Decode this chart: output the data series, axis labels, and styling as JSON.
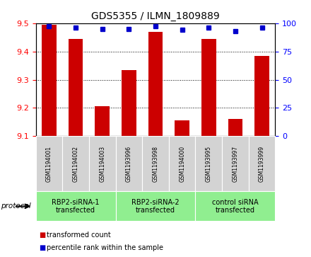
{
  "title": "GDS5355 / ILMN_1809889",
  "samples": [
    "GSM1194001",
    "GSM1194002",
    "GSM1194003",
    "GSM1193996",
    "GSM1193998",
    "GSM1194000",
    "GSM1193995",
    "GSM1193997",
    "GSM1193999"
  ],
  "bar_values": [
    9.495,
    9.445,
    9.205,
    9.335,
    9.47,
    9.155,
    9.445,
    9.16,
    9.385
  ],
  "percentile_values": [
    97,
    96,
    95,
    95,
    97,
    94,
    96,
    93,
    96
  ],
  "ylim_left": [
    9.1,
    9.5
  ],
  "ylim_right": [
    0,
    100
  ],
  "yticks_left": [
    9.1,
    9.2,
    9.3,
    9.4,
    9.5
  ],
  "yticks_right": [
    0,
    25,
    50,
    75,
    100
  ],
  "bar_color": "#cc0000",
  "dot_color": "#0000cc",
  "bar_width": 0.55,
  "groups": [
    {
      "label": "RBP2-siRNA-1\ntransfected",
      "start": 0,
      "end": 3,
      "color": "#90ee90"
    },
    {
      "label": "RBP2-siRNA-2\ntransfected",
      "start": 3,
      "end": 6,
      "color": "#90ee90"
    },
    {
      "label": "control siRNA\ntransfected",
      "start": 6,
      "end": 9,
      "color": "#90ee90"
    }
  ],
  "sample_bg_color": "#d3d3d3",
  "legend_items": [
    {
      "color": "#cc0000",
      "label": "transformed count"
    },
    {
      "color": "#0000cc",
      "label": "percentile rank within the sample"
    }
  ],
  "protocol_label": "protocol",
  "title_fontsize": 10,
  "tick_fontsize": 8,
  "sample_fontsize": 5.5,
  "group_fontsize": 7,
  "legend_fontsize": 7
}
